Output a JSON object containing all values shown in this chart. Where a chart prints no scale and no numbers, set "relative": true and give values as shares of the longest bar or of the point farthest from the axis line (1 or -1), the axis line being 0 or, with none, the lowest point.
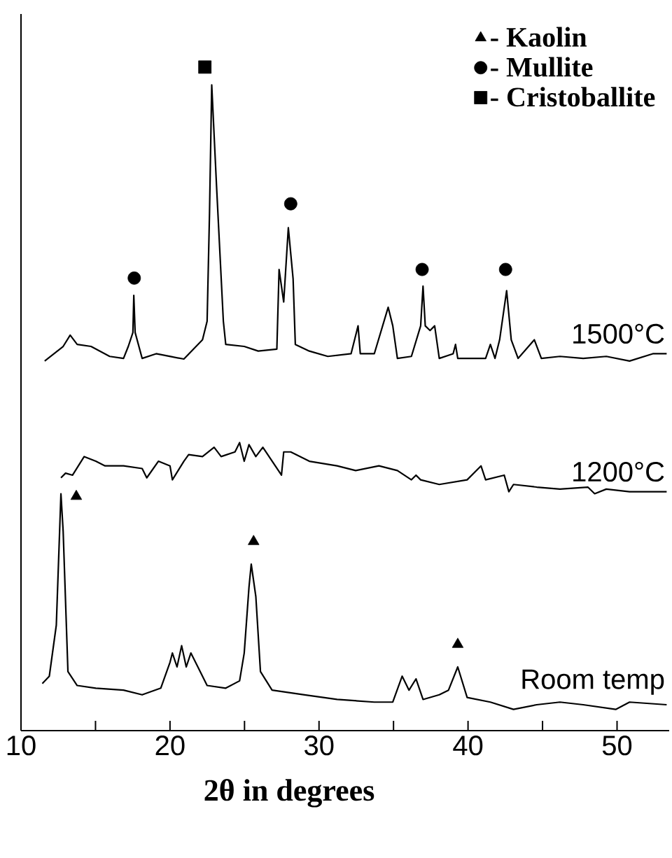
{
  "chart_data": {
    "type": "line",
    "relative": true,
    "xlabel": "2θ in degrees",
    "xlim": [
      10,
      53.5
    ],
    "xticks": [
      10,
      {
        "value": 15,
        "label": null
      },
      20,
      {
        "value": 25,
        "label": null
      },
      30,
      {
        "value": 35,
        "label": null
      },
      40,
      {
        "value": 45,
        "label": null
      },
      50
    ],
    "legend": "top right",
    "series": [
      {
        "name": "1500°C",
        "color": "#000000",
        "x": [
          11.59,
          12.83,
          13.3,
          13.77,
          14.7,
          15.95,
          16.88,
          17.2,
          17.51,
          17.57,
          17.66,
          18.13,
          19.07,
          20.93,
          22.18,
          22.49,
          22.65,
          22.8,
          23.12,
          23.58,
          23.74,
          24.98,
          25.92,
          27.17,
          27.32,
          27.63,
          27.94,
          28.26,
          28.41,
          29.35,
          30.59,
          32.15,
          32.62,
          32.77,
          33.71,
          34.64,
          34.95,
          35.26,
          36.2,
          36.82,
          36.98,
          37.13,
          37.45,
          37.76,
          38.07,
          39.0,
          39.16,
          39.31,
          41.18,
          41.5,
          41.81,
          42.12,
          42.59,
          42.9,
          43.36,
          44.45,
          44.92,
          46.17,
          47.73,
          49.28,
          50.84,
          52.4,
          53.33
        ],
        "values": [
          0.557,
          0.579,
          0.596,
          0.582,
          0.579,
          0.564,
          0.561,
          0.579,
          0.6,
          0.656,
          0.6,
          0.561,
          0.568,
          0.56,
          0.589,
          0.617,
          0.779,
          0.973,
          0.822,
          0.617,
          0.582,
          0.579,
          0.572,
          0.575,
          0.695,
          0.646,
          0.758,
          0.681,
          0.582,
          0.572,
          0.564,
          0.568,
          0.61,
          0.568,
          0.568,
          0.638,
          0.61,
          0.561,
          0.564,
          0.61,
          0.67,
          0.61,
          0.603,
          0.61,
          0.561,
          0.568,
          0.582,
          0.561,
          0.561,
          0.582,
          0.561,
          0.589,
          0.663,
          0.589,
          0.561,
          0.589,
          0.561,
          0.564,
          0.561,
          0.564,
          0.557,
          0.568,
          0.568
        ]
      },
      {
        "name": "1200°C",
        "color": "#000000",
        "x": [
          12.68,
          12.99,
          13.46,
          14.24,
          15.02,
          15.64,
          16.88,
          18.13,
          18.44,
          19.22,
          20.0,
          20.16,
          20.93,
          21.25,
          22.18,
          22.96,
          23.43,
          24.36,
          24.67,
          24.98,
          25.3,
          25.76,
          26.23,
          27.48,
          27.63,
          28.1,
          29.35,
          31.21,
          32.46,
          34.02,
          35.26,
          36.2,
          36.51,
          36.82,
          38.07,
          39.94,
          40.87,
          41.18,
          42.43,
          42.74,
          43.05,
          44.61,
          46.17,
          48.04,
          48.5,
          49.28,
          50.84,
          53.33
        ],
        "values": [
          0.381,
          0.388,
          0.385,
          0.413,
          0.406,
          0.399,
          0.399,
          0.395,
          0.381,
          0.406,
          0.399,
          0.378,
          0.406,
          0.416,
          0.413,
          0.427,
          0.413,
          0.42,
          0.434,
          0.406,
          0.431,
          0.413,
          0.427,
          0.385,
          0.42,
          0.42,
          0.406,
          0.399,
          0.392,
          0.399,
          0.392,
          0.378,
          0.385,
          0.378,
          0.371,
          0.378,
          0.399,
          0.378,
          0.385,
          0.36,
          0.371,
          0.367,
          0.364,
          0.367,
          0.357,
          0.364,
          0.36,
          0.36
        ]
      },
      {
        "name": "Room temp",
        "color": "#000000",
        "x": [
          11.43,
          11.9,
          12.37,
          12.68,
          12.83,
          13.15,
          13.77,
          15.02,
          16.88,
          18.13,
          19.38,
          20.0,
          20.16,
          20.47,
          20.78,
          21.09,
          21.4,
          21.87,
          22.49,
          23.74,
          24.67,
          24.98,
          25.3,
          25.45,
          25.76,
          26.07,
          26.85,
          29.03,
          31.21,
          33.71,
          34.95,
          35.58,
          36.04,
          36.51,
          36.98,
          38.07,
          38.69,
          39.31,
          39.94,
          41.5,
          43.05,
          44.61,
          46.17,
          47.73,
          49.91,
          50.84,
          53.33
        ],
        "values": [
          0.071,
          0.082,
          0.159,
          0.357,
          0.3,
          0.089,
          0.068,
          0.064,
          0.061,
          0.054,
          0.064,
          0.103,
          0.117,
          0.096,
          0.128,
          0.096,
          0.117,
          0.096,
          0.068,
          0.064,
          0.075,
          0.117,
          0.216,
          0.251,
          0.202,
          0.089,
          0.061,
          0.054,
          0.047,
          0.043,
          0.043,
          0.082,
          0.061,
          0.078,
          0.047,
          0.054,
          0.061,
          0.096,
          0.05,
          0.043,
          0.032,
          0.039,
          0.043,
          0.039,
          0.032,
          0.043,
          0.039
        ]
      },
      {
        "name": "- Kaolin",
        "type": "scatter",
        "marker": "triangle",
        "color": "#000000",
        "x": [
          13.71,
          25.61,
          39.31
        ],
        "values": [
          0.353,
          0.285,
          0.13
        ]
      },
      {
        "name": "- Mullite",
        "type": "scatter",
        "marker": "circle",
        "color": "#000000",
        "x": [
          17.6,
          28.1,
          36.92,
          42.52
        ],
        "values": [
          0.682,
          0.794,
          0.695,
          0.695
        ]
      },
      {
        "name": "- Cristoballite",
        "type": "scatter",
        "marker": "square",
        "color": "#000000",
        "x": [
          22.34
        ],
        "values": [
          1.0
        ]
      }
    ]
  }
}
